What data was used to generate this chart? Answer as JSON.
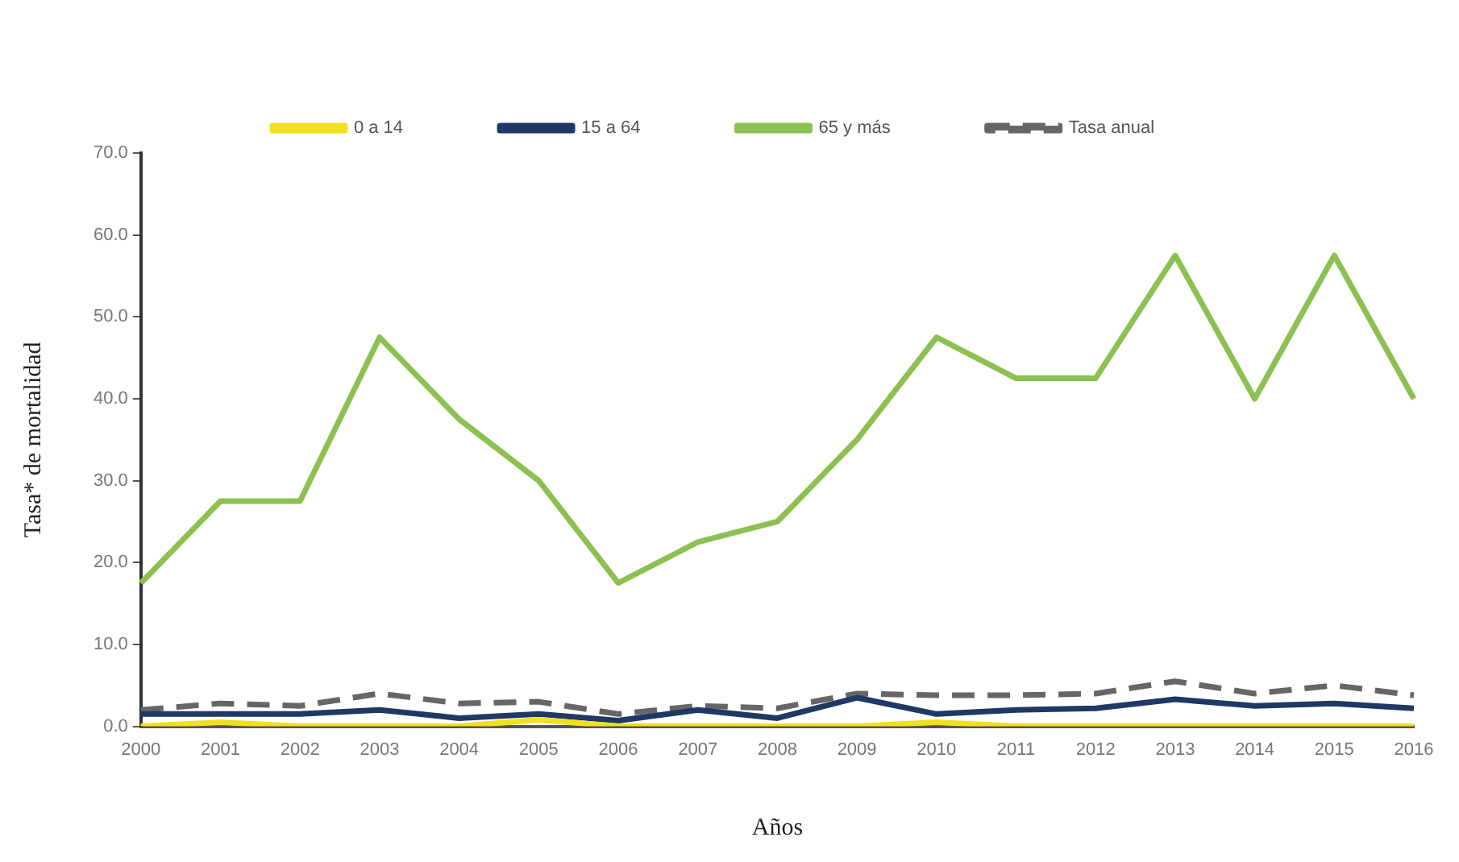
{
  "chart_data": {
    "type": "line",
    "xlabel": "Años",
    "ylabel": "Tasa* de mortalidad",
    "categories": [
      "2000",
      "2001",
      "2002",
      "2003",
      "2004",
      "2005",
      "2006",
      "2007",
      "2008",
      "2009",
      "2010",
      "2011",
      "2012",
      "2013",
      "2014",
      "2015",
      "2016"
    ],
    "series": [
      {
        "name": "0 a 14",
        "color": "#f0e01e",
        "values": [
          0,
          0.5,
          0,
          0,
          0,
          0.8,
          0,
          0,
          0,
          0,
          0.5,
          0,
          0,
          0,
          0,
          0,
          0
        ]
      },
      {
        "name": "15 a 64",
        "color": "#1f3864",
        "values": [
          1.5,
          1.5,
          1.5,
          2.0,
          1.0,
          1.5,
          0.7,
          2.0,
          1.0,
          3.5,
          1.5,
          2.0,
          2.2,
          3.3,
          2.5,
          2.8,
          2.2
        ]
      },
      {
        "name": "65 y más",
        "color": "#8cc152",
        "values": [
          17.5,
          27.5,
          27.5,
          47.5,
          37.5,
          30,
          17.5,
          22.5,
          25,
          35,
          47.5,
          42.5,
          42.5,
          57.5,
          40,
          57.5,
          40
        ]
      },
      {
        "name": "Tasa anual",
        "color": "#666666",
        "line_style": "dashed",
        "values": [
          2.0,
          2.8,
          2.5,
          4.0,
          2.8,
          3.0,
          1.5,
          2.5,
          2.2,
          4.0,
          3.8,
          3.8,
          4.0,
          5.5,
          4.0,
          5.0,
          3.8
        ]
      }
    ],
    "ylim": [
      0,
      70
    ],
    "yticks": [
      {
        "value": 0,
        "label": "0.0"
      },
      {
        "value": 10,
        "label": "10.0"
      },
      {
        "value": 20,
        "label": "20.0"
      },
      {
        "value": 30,
        "label": "30.0"
      },
      {
        "value": 40,
        "label": "40.0"
      },
      {
        "value": 50,
        "label": "50.0"
      },
      {
        "value": 60,
        "label": "60.0"
      },
      {
        "value": 70,
        "label": "70.0"
      }
    ],
    "grid": false,
    "legend": "top",
    "marker": "none",
    "line_style": "solid"
  }
}
